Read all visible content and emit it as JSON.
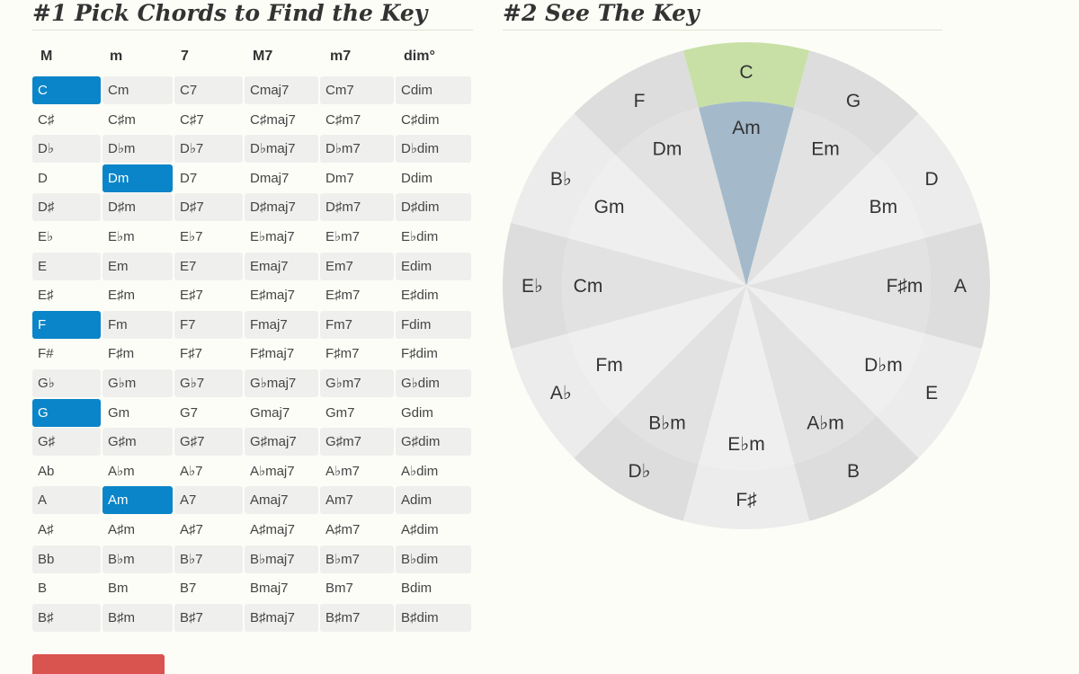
{
  "headings": {
    "pick": "#1 Pick Chords to Find the Key",
    "see": "#2 See The Key"
  },
  "chord_table": {
    "columns": [
      "M",
      "m",
      "7",
      "M7",
      "m7",
      "dim°"
    ],
    "rows": [
      {
        "cells": [
          "C",
          "Cm",
          "C7",
          "Cmaj7",
          "Cm7",
          "Cdim"
        ],
        "selected": [
          0
        ]
      },
      {
        "cells": [
          "C♯",
          "C♯m",
          "C♯7",
          "C♯maj7",
          "C♯m7",
          "C♯dim"
        ],
        "selected": []
      },
      {
        "cells": [
          "D♭",
          "D♭m",
          "D♭7",
          "D♭maj7",
          "D♭m7",
          "D♭dim"
        ],
        "selected": []
      },
      {
        "cells": [
          "D",
          "Dm",
          "D7",
          "Dmaj7",
          "Dm7",
          "Ddim"
        ],
        "selected": [
          1
        ]
      },
      {
        "cells": [
          "D♯",
          "D♯m",
          "D♯7",
          "D♯maj7",
          "D♯m7",
          "D♯dim"
        ],
        "selected": []
      },
      {
        "cells": [
          "E♭",
          "E♭m",
          "E♭7",
          "E♭maj7",
          "E♭m7",
          "E♭dim"
        ],
        "selected": []
      },
      {
        "cells": [
          "E",
          "Em",
          "E7",
          "Emaj7",
          "Em7",
          "Edim"
        ],
        "selected": []
      },
      {
        "cells": [
          "E♯",
          "E♯m",
          "E♯7",
          "E♯maj7",
          "E♯m7",
          "E♯dim"
        ],
        "selected": []
      },
      {
        "cells": [
          "F",
          "Fm",
          "F7",
          "Fmaj7",
          "Fm7",
          "Fdim"
        ],
        "selected": [
          0
        ]
      },
      {
        "cells": [
          "F#",
          "F♯m",
          "F♯7",
          "F♯maj7",
          "F♯m7",
          "F♯dim"
        ],
        "selected": []
      },
      {
        "cells": [
          "G♭",
          "G♭m",
          "G♭7",
          "G♭maj7",
          "G♭m7",
          "G♭dim"
        ],
        "selected": []
      },
      {
        "cells": [
          "G",
          "Gm",
          "G7",
          "Gmaj7",
          "Gm7",
          "Gdim"
        ],
        "selected": [
          0
        ]
      },
      {
        "cells": [
          "G♯",
          "G♯m",
          "G♯7",
          "G♯maj7",
          "G♯m7",
          "G♯dim"
        ],
        "selected": []
      },
      {
        "cells": [
          "Ab",
          "A♭m",
          "A♭7",
          "A♭maj7",
          "A♭m7",
          "A♭dim"
        ],
        "selected": []
      },
      {
        "cells": [
          "A",
          "Am",
          "A7",
          "Amaj7",
          "Am7",
          "Adim"
        ],
        "selected": [
          1
        ]
      },
      {
        "cells": [
          "A♯",
          "A♯m",
          "A♯7",
          "A♯maj7",
          "A♯m7",
          "A♯dim"
        ],
        "selected": []
      },
      {
        "cells": [
          "Bb",
          "B♭m",
          "B♭7",
          "B♭maj7",
          "B♭m7",
          "B♭dim"
        ],
        "selected": []
      },
      {
        "cells": [
          "B",
          "Bm",
          "B7",
          "Bmaj7",
          "Bm7",
          "Bdim"
        ],
        "selected": []
      },
      {
        "cells": [
          "B♯",
          "B♯m",
          "B♯7",
          "B♯maj7",
          "B♯m7",
          "B♯dim"
        ],
        "selected": []
      }
    ]
  },
  "circle_of_fifths": {
    "major_keys": [
      "C",
      "G",
      "D",
      "A",
      "E",
      "B",
      "F♯",
      "D♭",
      "A♭",
      "E♭",
      "B♭",
      "F"
    ],
    "minor_keys": [
      "Am",
      "Em",
      "Bm",
      "F♯m",
      "D♭m",
      "A♭m",
      "E♭m",
      "B♭m",
      "Fm",
      "Cm",
      "Gm",
      "Dm"
    ],
    "highlighted_major": "C",
    "highlighted_minor": "Am"
  },
  "colors": {
    "selected_cell": "#0a85c9",
    "major_highlight": "#c8e0a6",
    "minor_highlight": "#a4bacb",
    "shade_dark": "#dddddd",
    "shade_light": "#ececec",
    "inner_dark": "#e2e2e2",
    "inner_light": "#efefef",
    "button": "#d9534f"
  }
}
